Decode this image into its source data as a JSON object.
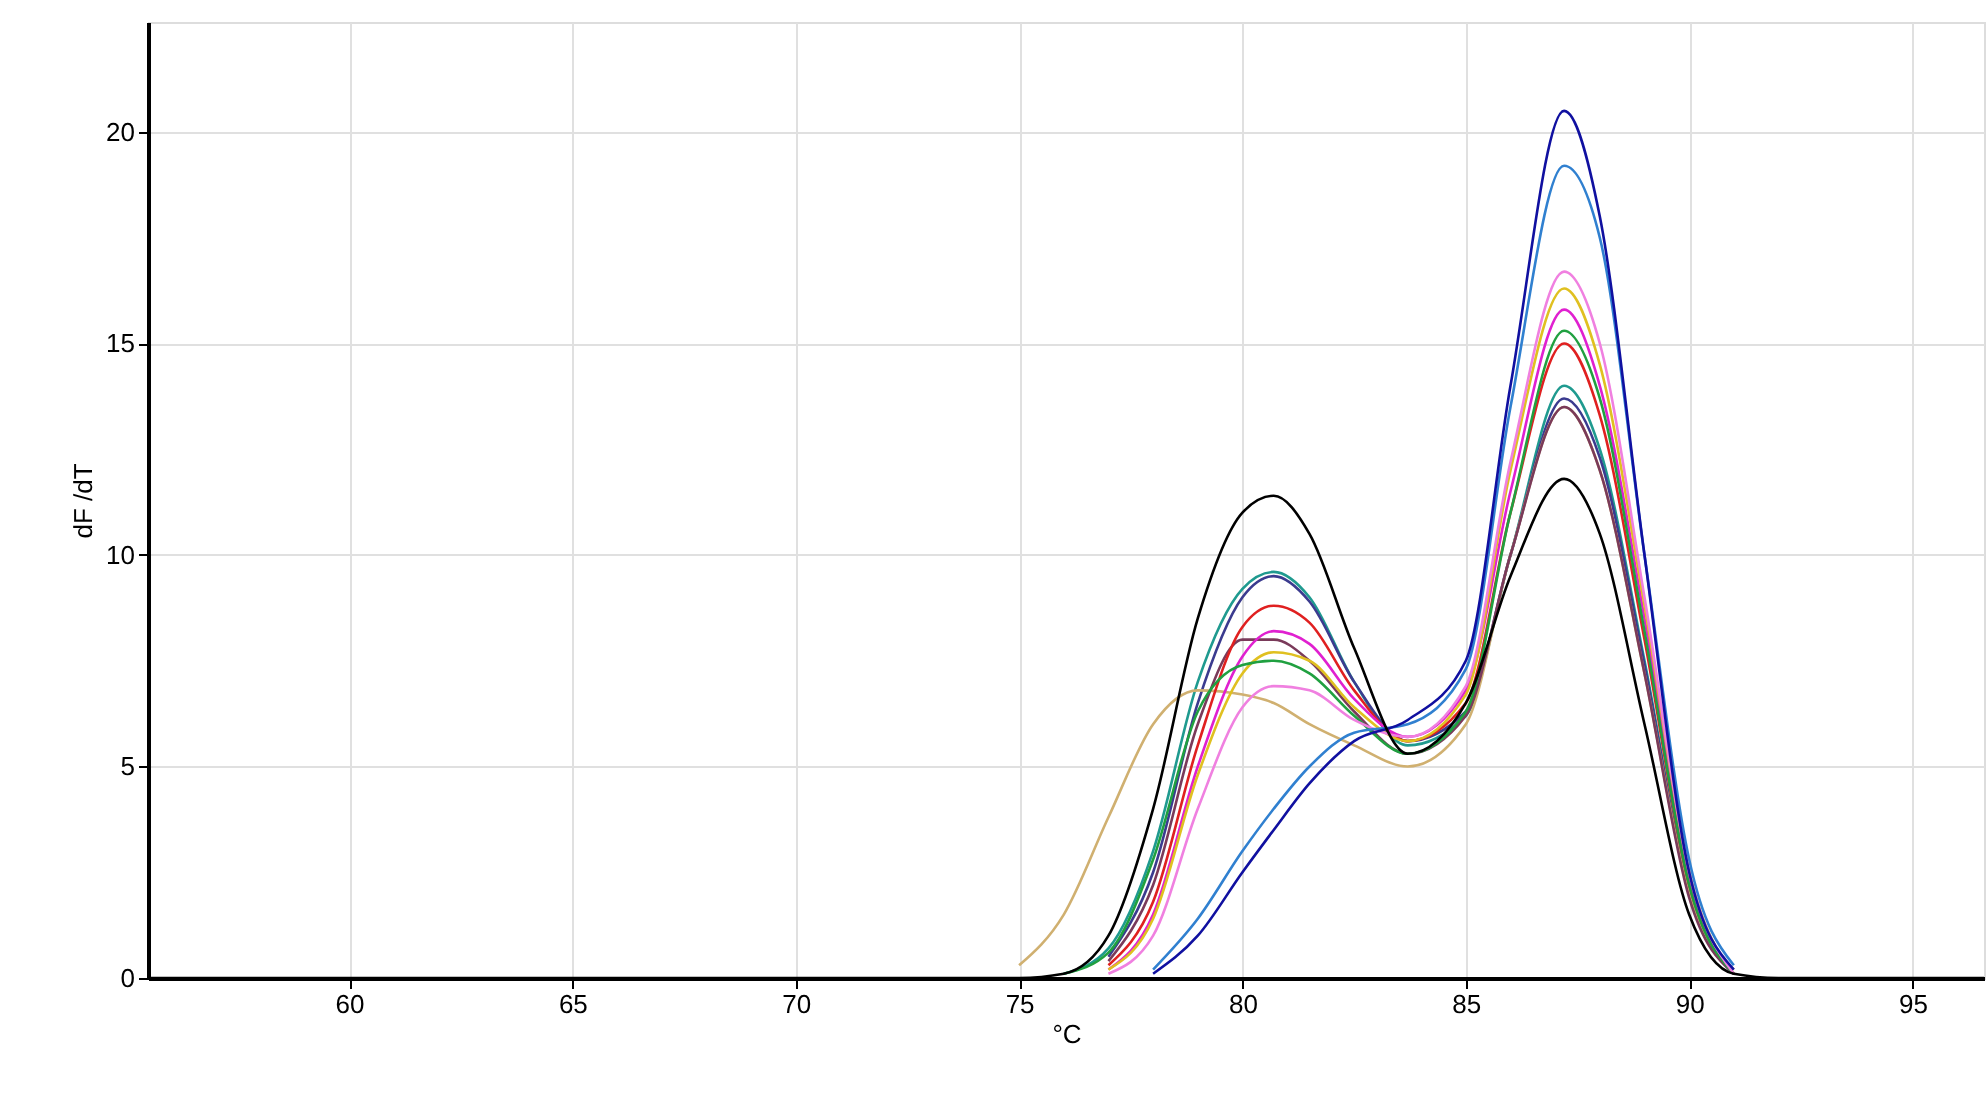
{
  "chart_data": {
    "type": "line",
    "xlabel": "°C",
    "ylabel": "dF /dT",
    "xlim": [
      55.5,
      96.6
    ],
    "xticks": [
      60,
      65,
      70,
      75,
      80,
      85,
      90,
      95
    ],
    "ylim": [
      0,
      22.6
    ],
    "yticks": [
      0,
      5,
      10,
      15,
      20
    ],
    "grid": true,
    "x": [
      55.5,
      74,
      75,
      76,
      77,
      78,
      79,
      80,
      80.7,
      81.5,
      82.5,
      83.7,
      85,
      86,
      87.2,
      88,
      89,
      90,
      91,
      92,
      96.6
    ],
    "series": [
      {
        "color": "#1f9a8f",
        "values": [
          null,
          null,
          null,
          0.1,
          0.7,
          3,
          7,
          9.2,
          9.6,
          9,
          7,
          5.5,
          6.2,
          10,
          14,
          12.5,
          7.5,
          2,
          0.1,
          null,
          null
        ]
      },
      {
        "color": "#3b3b8f",
        "values": [
          null,
          null,
          null,
          null,
          0.5,
          2.5,
          6.5,
          9,
          9.5,
          8.9,
          7,
          5.6,
          6.3,
          10,
          13.7,
          12.3,
          7.4,
          2,
          0.1,
          null,
          null
        ]
      },
      {
        "color": "#d0b070",
        "values": [
          null,
          null,
          0.3,
          1.5,
          3.8,
          6,
          6.8,
          6.7,
          6.5,
          6,
          5.5,
          5,
          6,
          10,
          13.5,
          12,
          7.2,
          2,
          0.2,
          null,
          null
        ]
      },
      {
        "color": "#7a3a5a",
        "values": [
          null,
          null,
          null,
          null,
          0.4,
          2.2,
          6,
          8,
          8,
          7.5,
          6.3,
          5.3,
          6.2,
          10,
          13.5,
          12,
          7.2,
          1.9,
          0.1,
          null,
          null
        ]
      },
      {
        "color": "#e02020",
        "values": [
          null,
          null,
          null,
          null,
          0.3,
          1.8,
          5.5,
          8.3,
          8.8,
          8.4,
          6.8,
          5.6,
          6.5,
          11,
          15,
          13.3,
          8,
          2.2,
          0.1,
          null,
          null
        ]
      },
      {
        "color": "#e020d0",
        "values": [
          null,
          null,
          null,
          null,
          0.2,
          1.5,
          5,
          7.6,
          8.2,
          7.9,
          6.6,
          5.7,
          6.8,
          11.5,
          15.8,
          14,
          8.5,
          2.3,
          0.1,
          null,
          null
        ]
      },
      {
        "color": "#e0c020",
        "values": [
          null,
          null,
          null,
          null,
          0.2,
          1.4,
          4.8,
          7.2,
          7.7,
          7.5,
          6.4,
          5.6,
          6.7,
          12,
          16.3,
          14.5,
          8.8,
          2.5,
          0.1,
          null,
          null
        ]
      },
      {
        "color": "#20a040",
        "values": [
          null,
          null,
          null,
          0.1,
          0.6,
          2.8,
          6.3,
          7.4,
          7.5,
          7.2,
          6.2,
          5.3,
          6.3,
          11,
          15.3,
          13.7,
          8.2,
          2.2,
          0.1,
          null,
          null
        ]
      },
      {
        "color": "#f080e0",
        "values": [
          null,
          null,
          null,
          null,
          0.1,
          1,
          4,
          6.4,
          6.9,
          6.8,
          6.1,
          5.7,
          6.9,
          12.2,
          16.7,
          15,
          9,
          2.5,
          0.1,
          null,
          null
        ]
      },
      {
        "color": "#3080d0",
        "values": [
          null,
          null,
          null,
          null,
          null,
          0.2,
          1.4,
          3,
          4,
          5,
          5.8,
          6,
          7.3,
          13.5,
          19.2,
          17.5,
          10,
          2.8,
          0.3,
          null,
          null
        ]
      },
      {
        "color": "#1010a0",
        "values": [
          null,
          null,
          null,
          null,
          null,
          0.1,
          1,
          2.5,
          3.5,
          4.6,
          5.6,
          6.1,
          7.5,
          14,
          20.5,
          18,
          10,
          2.5,
          0.2,
          null,
          null
        ]
      },
      {
        "color": "#000000",
        "values": [
          0,
          0,
          0,
          0.1,
          1,
          4,
          8.5,
          11,
          11.4,
          10.5,
          7.8,
          5.3,
          6.5,
          9.5,
          11.8,
          10.5,
          6,
          1.5,
          0.1,
          0,
          0
        ]
      }
    ]
  }
}
